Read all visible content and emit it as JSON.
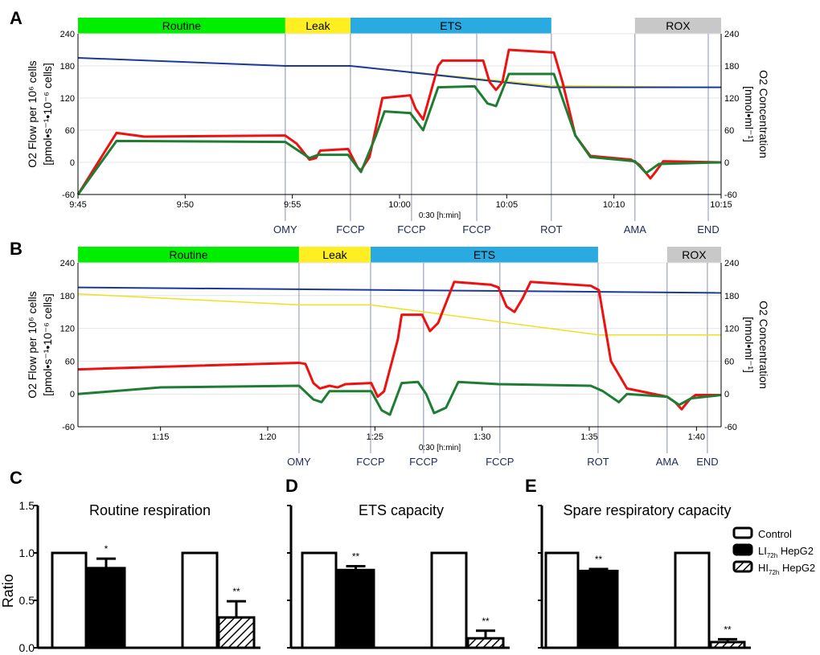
{
  "panel_labels": [
    "A",
    "B",
    "C",
    "D",
    "E"
  ],
  "chart_data": [
    {
      "type": "line",
      "panel": "A",
      "ylabel_left": "O2 Flow per 10⁶ cells",
      "ylabel_left2": "[pmol•s⁻¹•10⁻⁶ cells]",
      "ylabel_right": "O2 Concentration",
      "ylabel_right2": "[nmol•ml⁻¹]",
      "ylim": [
        -60,
        240
      ],
      "yticks": [
        -60,
        0,
        60,
        120,
        180,
        240
      ],
      "xlim_min": [
        0,
        30
      ],
      "x_origin": "9:45",
      "xticks": [
        {
          "t": 0,
          "label": "9:45"
        },
        {
          "t": 5,
          "label": "9:50"
        },
        {
          "t": 10,
          "label": "9:55"
        },
        {
          "t": 15,
          "label": "10:00"
        },
        {
          "t": 20,
          "label": "10:05"
        },
        {
          "t": 25,
          "label": "10:10"
        },
        {
          "t": 30,
          "label": "10:15"
        }
      ],
      "scale_note": "0:30 [h:min]",
      "phases": [
        {
          "label": "Routine",
          "from": 0,
          "to": 9.67,
          "color": "#00ee00"
        },
        {
          "label": "Leak",
          "from": 9.67,
          "to": 12.71,
          "color": "#ffee22"
        },
        {
          "label": "ETS",
          "from": 12.71,
          "to": 22.08,
          "color": "#29abe2"
        },
        {
          "label": "ROX",
          "from": 25.98,
          "to": 30,
          "color": "#c8c8c8"
        }
      ],
      "events": [
        {
          "t": 9.67,
          "label": "OMY"
        },
        {
          "t": 12.71,
          "label": "FCCP"
        },
        {
          "t": 15.56,
          "label": "FCCP"
        },
        {
          "t": 18.6,
          "label": "FCCP"
        },
        {
          "t": 22.08,
          "label": "ROT"
        },
        {
          "t": 25.98,
          "label": "AMA"
        },
        {
          "t": 29.4,
          "label": "END"
        }
      ],
      "series": [
        {
          "name": "O2 concentration (yellow)",
          "color": "#f0e020",
          "width": 1.5,
          "points": [
            [
              0,
              195
            ],
            [
              9.67,
              180
            ],
            [
              12.71,
              180
            ],
            [
              22.08,
              143
            ],
            [
              30,
              140
            ]
          ]
        },
        {
          "name": "O2 concentration (blue)",
          "color": "#1a3a9a",
          "width": 2,
          "points": [
            [
              0,
              195
            ],
            [
              9.67,
              180
            ],
            [
              12.71,
              180
            ],
            [
              22.08,
              140
            ],
            [
              30,
              140
            ]
          ]
        },
        {
          "name": "O2 flow (red)",
          "color": "#ee1111",
          "width": 3,
          "points": [
            [
              0,
              -60
            ],
            [
              1.8,
              55
            ],
            [
              3.1,
              48
            ],
            [
              9.67,
              50
            ],
            [
              10.2,
              35
            ],
            [
              10.8,
              5
            ],
            [
              11.1,
              8
            ],
            [
              11.3,
              22
            ],
            [
              12.6,
              25
            ],
            [
              13.05,
              -10
            ],
            [
              13.2,
              -15
            ],
            [
              13.6,
              10
            ],
            [
              14.2,
              120
            ],
            [
              15.5,
              125
            ],
            [
              15.75,
              100
            ],
            [
              16.1,
              80
            ],
            [
              16.8,
              180
            ],
            [
              17,
              190
            ],
            [
              18.9,
              190
            ],
            [
              19.2,
              150
            ],
            [
              19.5,
              135
            ],
            [
              19.8,
              150
            ],
            [
              20.1,
              210
            ],
            [
              22.2,
              205
            ],
            [
              22.6,
              150
            ],
            [
              23.2,
              50
            ],
            [
              23.9,
              12
            ],
            [
              25.8,
              5
            ],
            [
              26.2,
              -5
            ],
            [
              26.7,
              -30
            ],
            [
              26.9,
              -20
            ],
            [
              27.3,
              2
            ],
            [
              30,
              0
            ]
          ]
        },
        {
          "name": "O2 flow (green)",
          "color": "#1e7d32",
          "width": 3,
          "points": [
            [
              0,
              -60
            ],
            [
              1.8,
              40
            ],
            [
              9.67,
              38
            ],
            [
              10.8,
              8
            ],
            [
              11.2,
              14
            ],
            [
              12.6,
              14
            ],
            [
              13.2,
              -18
            ],
            [
              13.9,
              50
            ],
            [
              14.3,
              95
            ],
            [
              15.5,
              92
            ],
            [
              16.1,
              60
            ],
            [
              16.8,
              140
            ],
            [
              18.5,
              142
            ],
            [
              19.1,
              110
            ],
            [
              19.5,
              105
            ],
            [
              20.1,
              165
            ],
            [
              22.2,
              165
            ],
            [
              23.2,
              50
            ],
            [
              23.9,
              10
            ],
            [
              25.98,
              2
            ],
            [
              26.5,
              -20
            ],
            [
              27.1,
              -3
            ],
            [
              30,
              0
            ]
          ]
        }
      ]
    },
    {
      "type": "line",
      "panel": "B",
      "ylabel_left": "O2 Flow per 10⁶ cells",
      "ylabel_left2": "[pmol•s⁻¹•10⁻⁶ cells]",
      "ylabel_right": "O2 Concentration",
      "ylabel_right2": "[nmol•ml⁻¹]",
      "ylim": [
        -60,
        240
      ],
      "yticks": [
        -60,
        0,
        60,
        120,
        180,
        240
      ],
      "xlim_min": [
        11.15,
        41.15
      ],
      "x_origin": "1:00",
      "xticks": [
        {
          "t": 15,
          "label": "1:15"
        },
        {
          "t": 20,
          "label": "1:20"
        },
        {
          "t": 25,
          "label": "1:25"
        },
        {
          "t": 30,
          "label": "1:30"
        },
        {
          "t": 35,
          "label": "1:35"
        },
        {
          "t": 40,
          "label": "1:40"
        }
      ],
      "scale_note": "0:30 [h:min]",
      "phases": [
        {
          "label": "Routine",
          "from": 11.15,
          "to": 21.46,
          "color": "#00ee00"
        },
        {
          "label": "Leak",
          "from": 21.46,
          "to": 24.8,
          "color": "#ffee22"
        },
        {
          "label": "ETS",
          "from": 24.8,
          "to": 35.41,
          "color": "#29abe2"
        },
        {
          "label": "ROX",
          "from": 38.63,
          "to": 41.15,
          "color": "#c8c8c8"
        }
      ],
      "events": [
        {
          "t": 21.46,
          "label": "OMY"
        },
        {
          "t": 24.8,
          "label": "FCCP"
        },
        {
          "t": 27.27,
          "label": "FCCP"
        },
        {
          "t": 30.83,
          "label": "FCCP"
        },
        {
          "t": 35.41,
          "label": "ROT"
        },
        {
          "t": 38.63,
          "label": "AMA"
        },
        {
          "t": 40.51,
          "label": "END"
        }
      ],
      "series": [
        {
          "name": "O2 concentration (yellow)",
          "color": "#f0e020",
          "width": 1.5,
          "points": [
            [
              11.15,
              183
            ],
            [
              21.46,
              163
            ],
            [
              24.8,
              163
            ],
            [
              35.45,
              108
            ],
            [
              41.15,
              108
            ]
          ]
        },
        {
          "name": "O2 concentration (blue)",
          "color": "#1a3a9a",
          "width": 2,
          "points": [
            [
              11.15,
              195
            ],
            [
              41.15,
              185
            ]
          ]
        },
        {
          "name": "O2 flow (red)",
          "color": "#ee1111",
          "width": 3,
          "points": [
            [
              11.15,
              45
            ],
            [
              16.89,
              52
            ],
            [
              21.46,
              57
            ],
            [
              21.76,
              55
            ],
            [
              22.13,
              20
            ],
            [
              22.43,
              10
            ],
            [
              22.88,
              15
            ],
            [
              23.26,
              12
            ],
            [
              23.63,
              18
            ],
            [
              24.83,
              20
            ],
            [
              25.13,
              -5
            ],
            [
              25.43,
              5
            ],
            [
              26.07,
              100
            ],
            [
              26.25,
              145
            ],
            [
              27.2,
              145
            ],
            [
              27.57,
              115
            ],
            [
              27.95,
              130
            ],
            [
              28.7,
              205
            ],
            [
              30.4,
              200
            ],
            [
              30.76,
              195
            ],
            [
              31.14,
              160
            ],
            [
              31.51,
              150
            ],
            [
              31.89,
              175
            ],
            [
              32.26,
              205
            ],
            [
              35.07,
              198
            ],
            [
              35.45,
              190
            ],
            [
              36.01,
              60
            ],
            [
              36.76,
              10
            ],
            [
              38.63,
              -5
            ],
            [
              39.0,
              -15
            ],
            [
              39.31,
              -28
            ],
            [
              39.68,
              -10
            ],
            [
              39.95,
              -2
            ],
            [
              41.15,
              -2
            ]
          ]
        },
        {
          "name": "O2 flow (green)",
          "color": "#1e7d32",
          "width": 3,
          "points": [
            [
              11.15,
              0
            ],
            [
              15.01,
              12
            ],
            [
              21.46,
              15
            ],
            [
              22.13,
              -10
            ],
            [
              22.51,
              -15
            ],
            [
              22.88,
              5
            ],
            [
              24.83,
              5
            ],
            [
              25.32,
              -30
            ],
            [
              25.7,
              -38
            ],
            [
              26.25,
              20
            ],
            [
              27.01,
              22
            ],
            [
              27.39,
              0
            ],
            [
              27.76,
              -35
            ],
            [
              28.32,
              -25
            ],
            [
              28.89,
              22
            ],
            [
              30.76,
              18
            ],
            [
              35.07,
              15
            ],
            [
              35.64,
              5
            ],
            [
              36.38,
              -15
            ],
            [
              36.76,
              0
            ],
            [
              38.63,
              -5
            ],
            [
              39.19,
              -20
            ],
            [
              39.75,
              -8
            ],
            [
              41.15,
              -2
            ]
          ]
        }
      ]
    },
    {
      "type": "bar",
      "panel": "C",
      "title": "Routine respiration",
      "ylabel": "Ratio",
      "ylim": [
        0,
        1.5
      ],
      "yticks": [
        "0.0",
        "0.5",
        "1.0",
        "1.5"
      ],
      "categories": [
        "Control",
        "LI72h HepG2",
        "Control",
        "HI72h HepG2"
      ],
      "values": [
        1.0,
        0.84,
        1.0,
        0.32
      ],
      "errors": [
        0,
        0.1,
        0,
        0.17
      ],
      "significance": [
        "",
        "*",
        "",
        "**"
      ]
    },
    {
      "type": "bar",
      "panel": "D",
      "title": "ETS capacity",
      "ylim": [
        0,
        1.5
      ],
      "categories": [
        "Control",
        "LI72h HepG2",
        "Control",
        "HI72h HepG2"
      ],
      "values": [
        1.0,
        0.82,
        1.0,
        0.1
      ],
      "errors": [
        0,
        0.04,
        0,
        0.08
      ],
      "significance": [
        "",
        "**",
        "",
        "**"
      ]
    },
    {
      "type": "bar",
      "panel": "E",
      "title": "Spare respiratory capacity",
      "ylim": [
        0,
        1.5
      ],
      "categories": [
        "Control",
        "LI72h HepG2",
        "Control",
        "HI72h HepG2"
      ],
      "values": [
        1.0,
        0.81,
        1.0,
        0.06
      ],
      "errors": [
        0,
        0.02,
        0,
        0.03
      ],
      "significance": [
        "",
        "**",
        "",
        "**"
      ]
    }
  ],
  "legend": [
    {
      "label": "Control",
      "sub": "",
      "suffix": "",
      "style": "white"
    },
    {
      "label": "LI",
      "sub": "72h",
      "suffix": " HepG2",
      "style": "black"
    },
    {
      "label": "HI",
      "sub": "72h",
      "suffix": " HepG2",
      "style": "hatch"
    }
  ]
}
